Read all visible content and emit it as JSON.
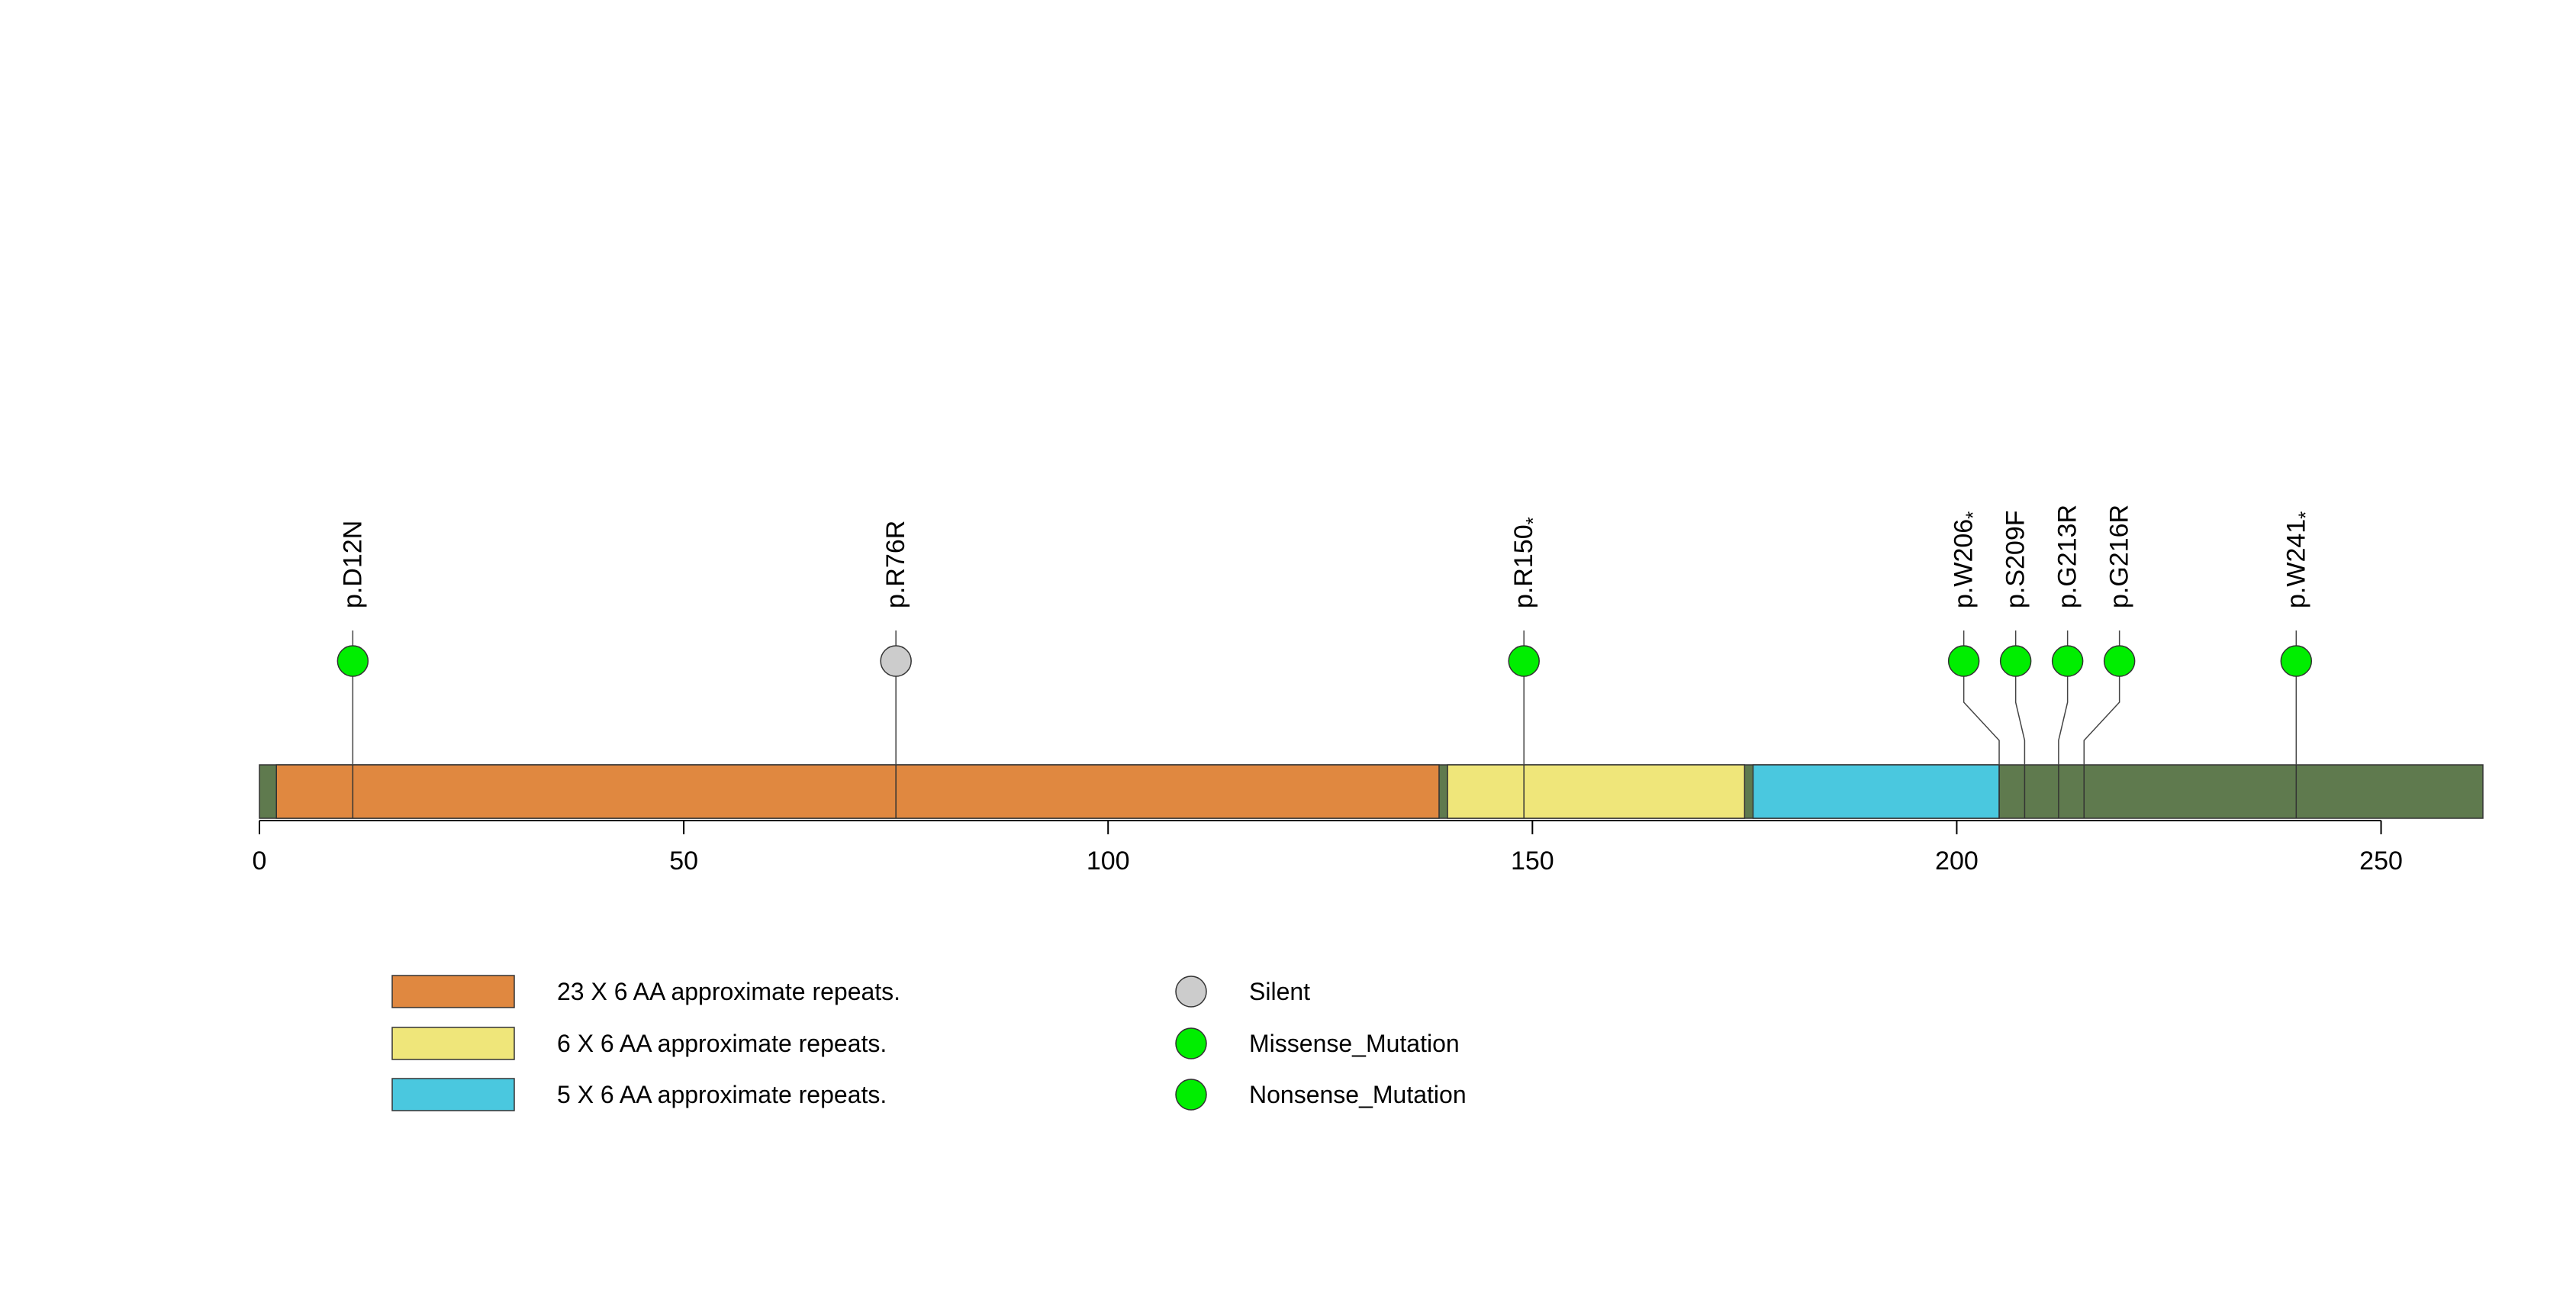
{
  "chart_data": {
    "type": "lollipop",
    "protein_length": 262,
    "x_axis": {
      "ticks": [
        0,
        50,
        100,
        150,
        200,
        250
      ],
      "labels": [
        "0",
        "50",
        "100",
        "150",
        "200",
        "250"
      ]
    },
    "backbone_color": "#5f7a4e",
    "domains": [
      {
        "name": "23 X 6 AA approximate repeats.",
        "start": 2,
        "end": 139,
        "color": "#e08840"
      },
      {
        "name": "6 X 6 AA approximate repeats.",
        "start": 140,
        "end": 175,
        "color": "#efe67a"
      },
      {
        "name": "5 X 6 AA approximate repeats.",
        "start": 176,
        "end": 205,
        "color": "#4ac8df"
      }
    ],
    "mutations": [
      {
        "label": "p.D12N",
        "position": 11,
        "type": "Missense_Mutation",
        "color": "#00ee00",
        "stop": false
      },
      {
        "label": "p.R76R",
        "position": 75,
        "type": "Silent",
        "color": "#cccccc",
        "stop": false
      },
      {
        "label": "p.R150",
        "position": 149,
        "type": "Nonsense_Mutation",
        "color": "#00ee00",
        "stop": true
      },
      {
        "label": "p.W206",
        "position": 205,
        "type": "Nonsense_Mutation",
        "color": "#00ee00",
        "stop": true
      },
      {
        "label": "p.S209F",
        "position": 208,
        "type": "Missense_Mutation",
        "color": "#00ee00",
        "stop": false
      },
      {
        "label": "p.G213R",
        "position": 212,
        "type": "Missense_Mutation",
        "color": "#00ee00",
        "stop": false
      },
      {
        "label": "p.G216R",
        "position": 215,
        "type": "Missense_Mutation",
        "color": "#00ee00",
        "stop": false
      },
      {
        "label": "p.W241",
        "position": 240,
        "type": "Nonsense_Mutation",
        "color": "#00ee00",
        "stop": true
      }
    ],
    "stop_marker": "*",
    "legend": {
      "domains": [
        {
          "label": "23 X 6 AA approximate repeats.",
          "color": "#e08840"
        },
        {
          "label": "6 X 6 AA approximate repeats.",
          "color": "#efe67a"
        },
        {
          "label": "5 X 6 AA approximate repeats.",
          "color": "#4ac8df"
        }
      ],
      "mutation_types": [
        {
          "label": "Silent",
          "color": "#cccccc"
        },
        {
          "label": "Missense_Mutation",
          "color": "#00ee00"
        },
        {
          "label": "Nonsense_Mutation",
          "color": "#00ee00"
        }
      ]
    }
  }
}
